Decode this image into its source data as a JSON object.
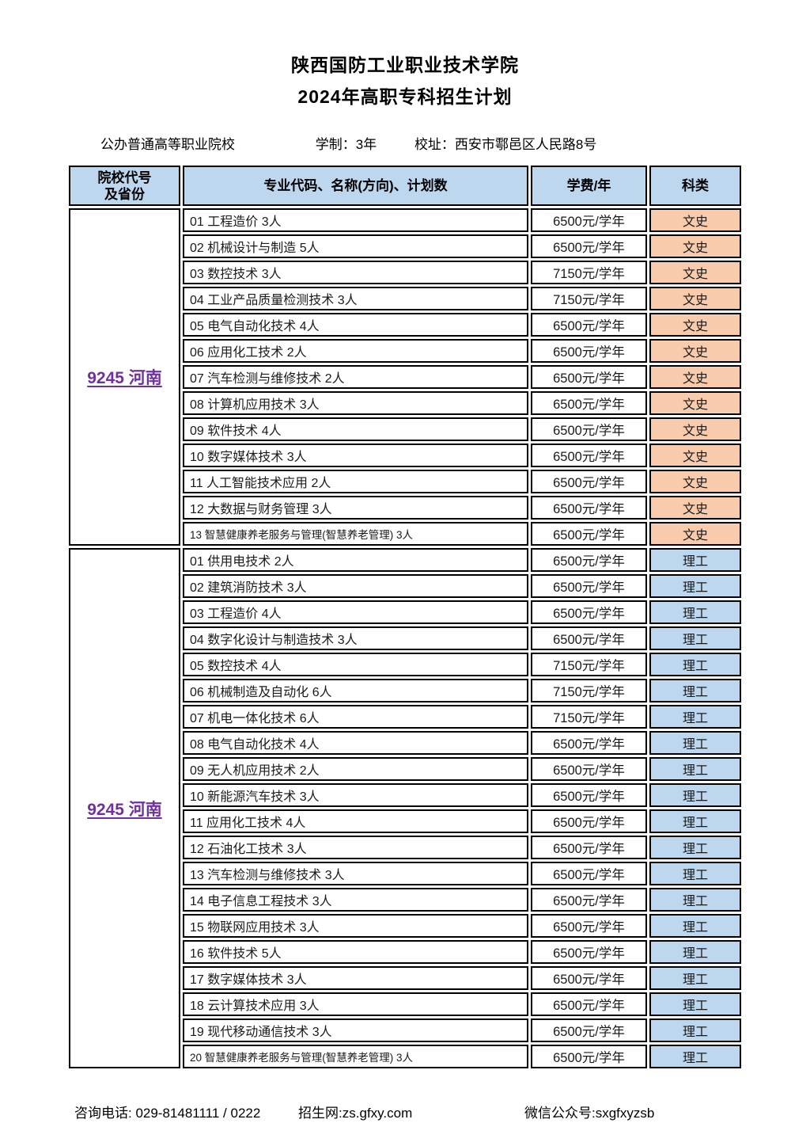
{
  "header": {
    "title_line1": "陕西国防工业职业技术学院",
    "title_line2": "2024年高职专科招生计划"
  },
  "info": {
    "school_type": "公办普通高等职业院校",
    "duration": "学制：3年",
    "address": "校址：西安市鄠邑区人民路8号"
  },
  "colors": {
    "header_bg": "#BDD7EE",
    "wenshi_bg": "#F8CBAD",
    "ligong_bg": "#BDD7EE",
    "code_link": "#7030A0",
    "border": "#000000"
  },
  "table": {
    "headers": {
      "code": "院校代号\n及省份",
      "major": "专业代码、名称(方向)、计划数",
      "fee": "学费/年",
      "category": "科类"
    }
  },
  "sections": [
    {
      "code": "9245 河南",
      "category_type": "文史",
      "rows": [
        {
          "label": "01 工程造价 3人",
          "fee": "6500元/学年",
          "category": "文史"
        },
        {
          "label": "02 机械设计与制造 5人",
          "fee": "6500元/学年",
          "category": "文史"
        },
        {
          "label": "03 数控技术 3人",
          "fee": "7150元/学年",
          "category": "文史"
        },
        {
          "label": "04 工业产品质量检测技术 3人",
          "fee": "7150元/学年",
          "category": "文史"
        },
        {
          "label": "05 电气自动化技术 4人",
          "fee": "6500元/学年",
          "category": "文史"
        },
        {
          "label": "06 应用化工技术 2人",
          "fee": "6500元/学年",
          "category": "文史"
        },
        {
          "label": "07 汽车检测与维修技术 2人",
          "fee": "6500元/学年",
          "category": "文史"
        },
        {
          "label": "08 计算机应用技术 3人",
          "fee": "6500元/学年",
          "category": "文史"
        },
        {
          "label": "09 软件技术 4人",
          "fee": "6500元/学年",
          "category": "文史"
        },
        {
          "label": "10 数字媒体技术 3人",
          "fee": "6500元/学年",
          "category": "文史"
        },
        {
          "label": "11 人工智能技术应用 2人",
          "fee": "6500元/学年",
          "category": "文史"
        },
        {
          "label": "12 大数据与财务管理 3人",
          "fee": "6500元/学年",
          "category": "文史"
        },
        {
          "label": "13 智慧健康养老服务与管理(智慧养老管理) 3人",
          "fee": "6500元/学年",
          "category": "文史"
        }
      ]
    },
    {
      "code": "9245 河南",
      "category_type": "理工",
      "rows": [
        {
          "label": "01 供用电技术 2人",
          "fee": "6500元/学年",
          "category": "理工"
        },
        {
          "label": "02 建筑消防技术 3人",
          "fee": "6500元/学年",
          "category": "理工"
        },
        {
          "label": "03 工程造价 4人",
          "fee": "6500元/学年",
          "category": "理工"
        },
        {
          "label": "04 数字化设计与制造技术 3人",
          "fee": "6500元/学年",
          "category": "理工"
        },
        {
          "label": "05 数控技术 4人",
          "fee": "7150元/学年",
          "category": "理工"
        },
        {
          "label": "06 机械制造及自动化 6人",
          "fee": "7150元/学年",
          "category": "理工"
        },
        {
          "label": "07 机电一体化技术 6人",
          "fee": "7150元/学年",
          "category": "理工"
        },
        {
          "label": "08 电气自动化技术 4人",
          "fee": "6500元/学年",
          "category": "理工"
        },
        {
          "label": "09 无人机应用技术 2人",
          "fee": "6500元/学年",
          "category": "理工"
        },
        {
          "label": "10 新能源汽车技术 3人",
          "fee": "6500元/学年",
          "category": "理工"
        },
        {
          "label": "11 应用化工技术 4人",
          "fee": "6500元/学年",
          "category": "理工"
        },
        {
          "label": "12 石油化工技术 3人",
          "fee": "6500元/学年",
          "category": "理工"
        },
        {
          "label": "13 汽车检测与维修技术 3人",
          "fee": "6500元/学年",
          "category": "理工"
        },
        {
          "label": "14 电子信息工程技术 3人",
          "fee": "6500元/学年",
          "category": "理工"
        },
        {
          "label": "15 物联网应用技术 3人",
          "fee": "6500元/学年",
          "category": "理工"
        },
        {
          "label": "16 软件技术 5人",
          "fee": "6500元/学年",
          "category": "理工"
        },
        {
          "label": "17 数字媒体技术 3人",
          "fee": "6500元/学年",
          "category": "理工"
        },
        {
          "label": "18 云计算技术应用 3人",
          "fee": "6500元/学年",
          "category": "理工"
        },
        {
          "label": "19 现代移动通信技术 3人",
          "fee": "6500元/学年",
          "category": "理工"
        },
        {
          "label": "20 智慧健康养老服务与管理(智慧养老管理) 3人",
          "fee": "6500元/学年",
          "category": "理工"
        }
      ]
    }
  ],
  "footer": {
    "phone": "咨询电话: 029-81481111 / 0222",
    "website": "招生网:zs.gfxy.com",
    "wechat": "微信公众号:sxgfxyzsb"
  }
}
